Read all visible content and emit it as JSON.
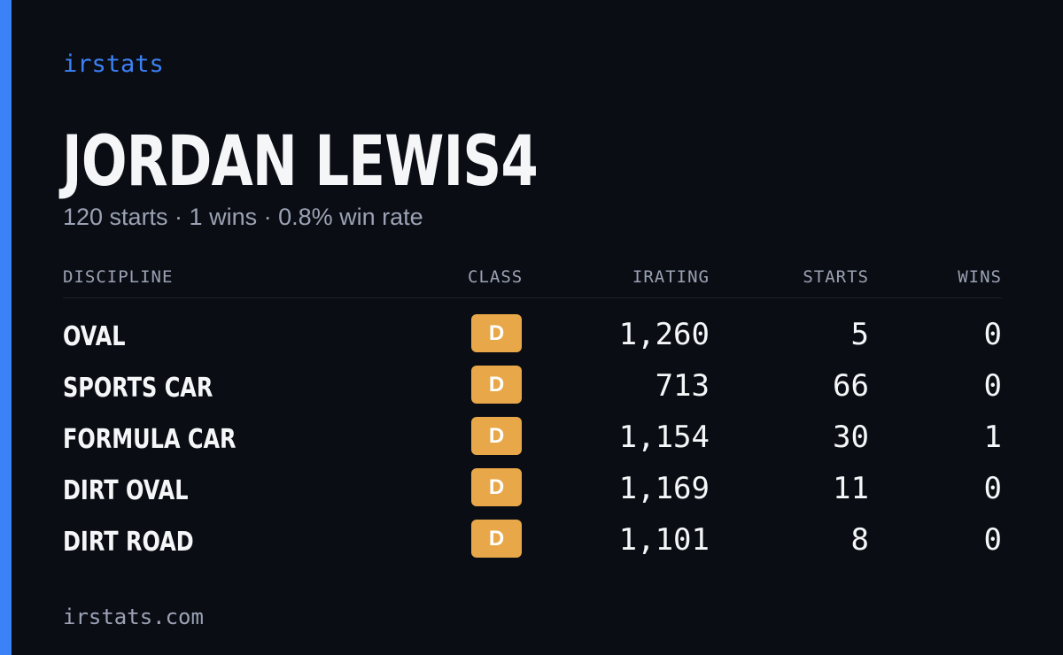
{
  "brand": "irstats",
  "player": {
    "name": "JORDAN LEWIS4",
    "summary": "120 starts · 1 wins · 0.8% win rate"
  },
  "table": {
    "headers": {
      "discipline": "DISCIPLINE",
      "class": "CLASS",
      "irating": "IRATING",
      "starts": "STARTS",
      "wins": "WINS"
    },
    "rows": [
      {
        "discipline": "OVAL",
        "class": "D",
        "irating": "1,260",
        "starts": "5",
        "wins": "0"
      },
      {
        "discipline": "SPORTS CAR",
        "class": "D",
        "irating": "713",
        "starts": "66",
        "wins": "0"
      },
      {
        "discipline": "FORMULA CAR",
        "class": "D",
        "irating": "1,154",
        "starts": "30",
        "wins": "1"
      },
      {
        "discipline": "DIRT OVAL",
        "class": "D",
        "irating": "1,169",
        "starts": "11",
        "wins": "0"
      },
      {
        "discipline": "DIRT ROAD",
        "class": "D",
        "irating": "1,101",
        "starts": "8",
        "wins": "0"
      }
    ]
  },
  "footer": {
    "url": "irstats.com"
  },
  "colors": {
    "background": "#0b0d14",
    "accent": "#3b82f6",
    "class_d_badge": "#e8a849",
    "muted_text": "#9aa2b4",
    "primary_text": "#f5f6f8"
  }
}
